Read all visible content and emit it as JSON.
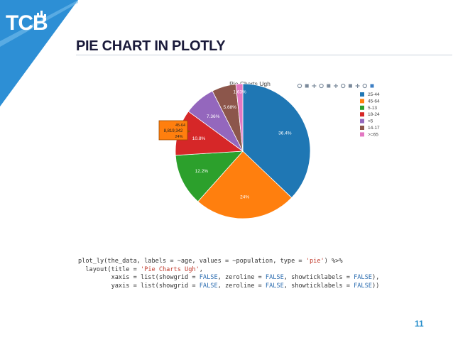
{
  "slide": {
    "logo_text": "TCB",
    "title": "PIE CHART IN PLOTLY",
    "page_number": "11",
    "accent_color": "#1f8ac9"
  },
  "chart_data": {
    "type": "pie",
    "title": "Pie Charts Ugh",
    "legend_position": "top-right",
    "categories": [
      "25-44",
      "45-64",
      "5-13",
      "18-24",
      "<5",
      "14-17",
      ">=65"
    ],
    "values": [
      36.4,
      24,
      12.2,
      10.8,
      7.36,
      5.68,
      1.63
    ],
    "slice_labels": [
      "36.4%",
      "24%",
      "12.2%",
      "10.8%",
      "7.36%",
      "5.68%",
      "1.63%"
    ],
    "colors": [
      "#1f77b4",
      "#ff7f0e",
      "#2ca02c",
      "#d62728",
      "#9467bd",
      "#8c564b",
      "#e377c2"
    ],
    "tooltip": {
      "label": "45-64",
      "value": "8,819,342",
      "percent": "24%"
    },
    "modebar_icons": [
      "camera-icon",
      "zoom-icon",
      "pan-icon",
      "zoom-in-icon",
      "zoom-out-icon",
      "autoscale-icon",
      "reset-icon",
      "spike-icon",
      "hover-closest-icon",
      "hover-compare-icon",
      "plotly-logo-icon"
    ]
  },
  "code": {
    "line1_a": "plot_ly(the_data, labels = ~age, values = ~population, type = ",
    "line1_str": "'pie'",
    "line1_b": ") %>%",
    "line2_a": "  layout(title = ",
    "line2_str": "'Pie Charts Ugh'",
    "line2_b": ",",
    "line3_a": "         xaxis = list(showgrid = ",
    "line3_b": ", zeroline = ",
    "line3_c": ", showticklabels = ",
    "line3_d": "),",
    "line4_a": "         yaxis = list(showgrid = ",
    "line4_b": ", zeroline = ",
    "line4_c": ", showticklabels = ",
    "line4_d": "))",
    "false_kw": "FALSE"
  }
}
